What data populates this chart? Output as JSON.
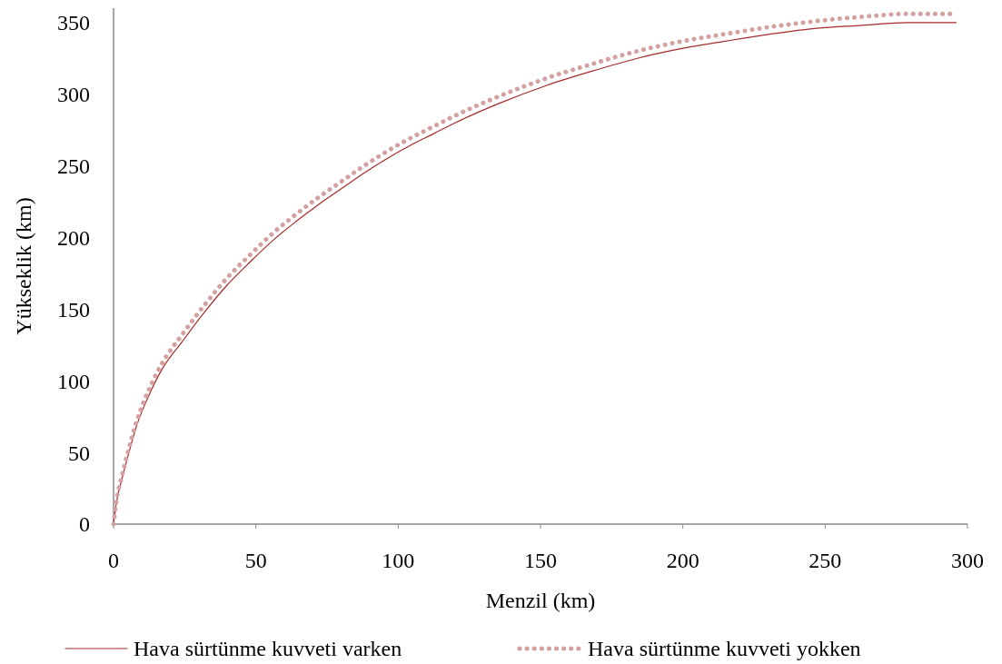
{
  "chart_data": {
    "type": "line",
    "xlabel": "Menzil (km)",
    "ylabel": "Yükseklik (km)",
    "xlim": [
      0,
      300
    ],
    "xticks": [
      0,
      50,
      100,
      150,
      200,
      250,
      300
    ],
    "ylim": [
      0,
      360
    ],
    "yticks": [
      0,
      50,
      100,
      150,
      200,
      250,
      300,
      350
    ],
    "grid": false,
    "legend": "bottom",
    "series": [
      {
        "name": "Hava sürtünme kuvveti varken",
        "color": "#a52a2a",
        "line_style": "solid",
        "x": [
          0,
          1,
          3,
          5,
          8,
          12,
          17,
          24,
          32,
          40,
          48,
          56,
          64,
          72,
          80,
          88,
          96,
          104,
          112,
          120,
          136,
          152,
          168,
          184,
          200,
          215,
          231,
          247,
          263,
          279,
          290,
          296
        ],
        "values": [
          0,
          15,
          32,
          47,
          68,
          88,
          108,
          127,
          148,
          167,
          183,
          198,
          211,
          223,
          234,
          245,
          255,
          264,
          272,
          280,
          294,
          306,
          316,
          325,
          332,
          337,
          342,
          346,
          348,
          350,
          350,
          350
        ]
      },
      {
        "name": "Hava sürtünme kuvveti yokken",
        "color": "#d4a0a0",
        "line_style": "dotted",
        "x": [
          0,
          1,
          3,
          5,
          8,
          12,
          17,
          24,
          32,
          40,
          48,
          56,
          64,
          72,
          80,
          88,
          96,
          104,
          112,
          120,
          136,
          152,
          168,
          184,
          200,
          215,
          231,
          247,
          263,
          279,
          290,
          296
        ],
        "values": [
          0,
          16,
          34,
          50,
          71,
          92,
          112,
          132,
          153,
          172,
          188,
          203,
          216,
          228,
          239,
          250,
          260,
          269,
          277,
          285,
          299,
          311,
          321,
          330,
          337,
          342,
          347,
          351,
          354,
          356,
          356,
          356
        ]
      }
    ]
  }
}
